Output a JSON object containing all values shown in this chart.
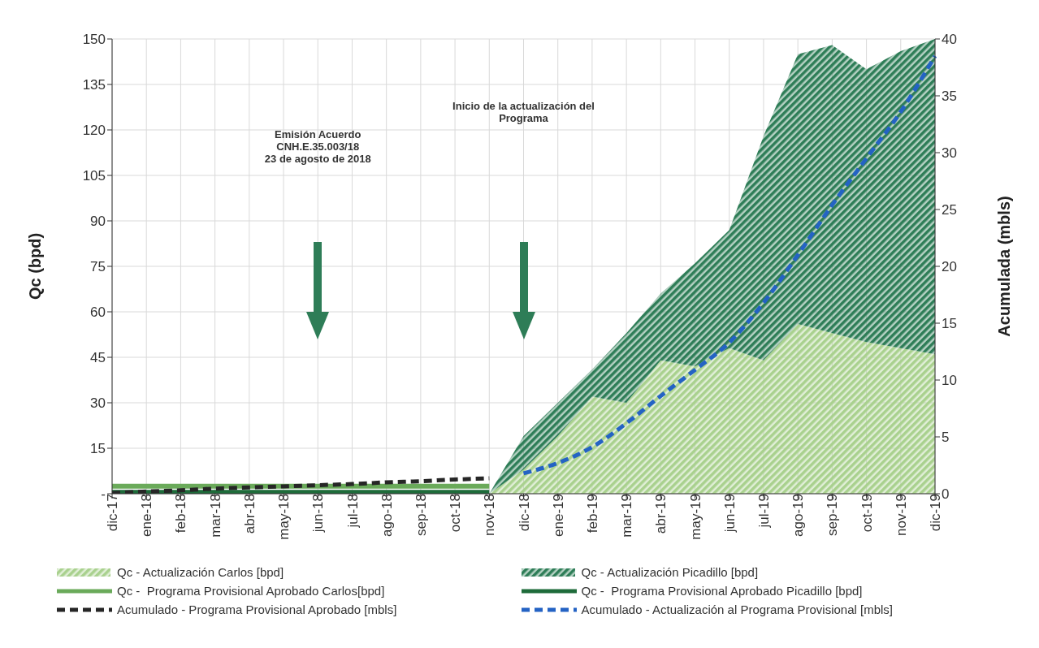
{
  "chart_data": {
    "type": "area",
    "xlabel": null,
    "ylabel": "Qc (bpd)",
    "y2label": "Acumulada (mbls)",
    "categories": [
      "dic-17",
      "ene-18",
      "feb-18",
      "mar-18",
      "abr-18",
      "may-18",
      "jun-18",
      "jul-18",
      "ago-18",
      "sep-18",
      "oct-18",
      "nov-18",
      "dic-18",
      "ene-19",
      "feb-19",
      "mar-19",
      "abr-19",
      "may-19",
      "jun-19",
      "jul-19",
      "ago-19",
      "sep-19",
      "oct-19",
      "nov-19",
      "dic-19"
    ],
    "stacked": true,
    "series": [
      {
        "name": "Qc - Actualización Carlos [bpd]",
        "color": "#a9d18e",
        "values": [
          null,
          null,
          null,
          null,
          null,
          null,
          null,
          null,
          null,
          null,
          null,
          0,
          8,
          19,
          32,
          30,
          44,
          42,
          48,
          44,
          56,
          53,
          50,
          48,
          46
        ]
      },
      {
        "name": "Qc - Actualización Picadillo [bpd]",
        "color": "#2e7d57",
        "values": [
          null,
          null,
          null,
          null,
          null,
          null,
          null,
          null,
          null,
          null,
          null,
          0,
          11,
          11,
          9,
          23,
          22,
          34,
          39,
          74,
          89,
          95,
          90,
          98,
          104
        ]
      },
      {
        "name": "Qc -  Programa Provisional Aprobado Carlos[bpd]",
        "type": "line",
        "color": "#6aaa5a",
        "line_style": "solid",
        "values": [
          2.5,
          2.5,
          2.5,
          2.5,
          2.5,
          2.5,
          2.5,
          2.5,
          2.5,
          2.5,
          2.5,
          2.5,
          null,
          null,
          null,
          null,
          null,
          null,
          null,
          null,
          null,
          null,
          null,
          null,
          null
        ]
      },
      {
        "name": "Qc -  Programa Provisional Aprobado Picadillo [bpd]",
        "type": "line",
        "color": "#1e6b3a",
        "line_style": "solid",
        "values": [
          0.5,
          0.5,
          0.5,
          0.5,
          0.5,
          0.5,
          0.5,
          0.5,
          0.5,
          0.5,
          0.5,
          0.5,
          null,
          null,
          null,
          null,
          null,
          null,
          null,
          null,
          null,
          null,
          null,
          null,
          null
        ]
      },
      {
        "name": "Acumulado - Programa Provisional Aprobado [mbls]",
        "type": "line",
        "axis": "y2",
        "color": "#262626",
        "line_style": "dashed",
        "values": [
          0.05,
          0.2,
          0.3,
          0.45,
          0.55,
          0.65,
          0.75,
          0.85,
          1.0,
          1.1,
          1.25,
          1.35,
          null,
          null,
          null,
          null,
          null,
          null,
          null,
          null,
          null,
          null,
          null,
          null,
          null
        ]
      },
      {
        "name": "Acumulado - Actualización al Programa Provisional [mbls]",
        "type": "line",
        "axis": "y2",
        "color": "#2463c4",
        "line_style": "dashed",
        "values": [
          null,
          null,
          null,
          null,
          null,
          null,
          null,
          null,
          null,
          null,
          null,
          null,
          1.8,
          2.7,
          4.1,
          6.2,
          8.6,
          10.9,
          13.3,
          16.8,
          21,
          25.4,
          29.5,
          33.6,
          38.5
        ]
      }
    ],
    "ylim": [
      0,
      150
    ],
    "yticks": [
      {
        "value": 0,
        "label": "-"
      },
      15,
      30,
      45,
      60,
      75,
      90,
      105,
      120,
      135,
      150
    ],
    "y2lim": [
      0,
      40
    ],
    "y2ticks": [
      0,
      5,
      10,
      15,
      20,
      25,
      30,
      35,
      40
    ],
    "grid": true,
    "legend": "bottom",
    "annotations": [
      "Emisión Acuerdo\nCNH.E.35.003/18\n23 de agosto de 2018",
      "Inicio de la actualización del\nPrograma"
    ]
  }
}
